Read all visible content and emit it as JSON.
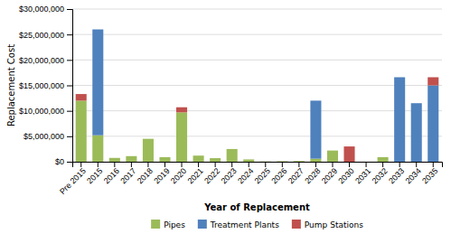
{
  "chart_data": {
    "type": "bar",
    "stacked": true,
    "xlabel": "Year of Replacement",
    "ylabel": "Replacement Cost",
    "categories": [
      "Pre 2015",
      "2015",
      "2016",
      "2017",
      "2018",
      "2019",
      "2020",
      "2021",
      "2022",
      "2023",
      "2024",
      "2025",
      "2026",
      "2027",
      "2028",
      "2029",
      "2030",
      "2031",
      "2032",
      "2033",
      "2034",
      "2035"
    ],
    "series": [
      {
        "name": "Pipes",
        "color": "#9BBB59",
        "values": [
          12000000,
          5200000,
          750000,
          1100000,
          4500000,
          900000,
          9700000,
          1200000,
          700000,
          2500000,
          450000,
          50000,
          100000,
          150000,
          600000,
          2200000,
          0,
          0,
          900000,
          0,
          0,
          0
        ]
      },
      {
        "name": "Treatment Plants",
        "color": "#4F81BD",
        "values": [
          0,
          20800000,
          0,
          0,
          0,
          0,
          0,
          0,
          0,
          0,
          0,
          0,
          0,
          0,
          11400000,
          0,
          0,
          0,
          0,
          16600000,
          11500000,
          15000000
        ]
      },
      {
        "name": "Pump Stations",
        "color": "#C0504D",
        "values": [
          1300000,
          0,
          0,
          0,
          0,
          0,
          1000000,
          0,
          0,
          0,
          0,
          0,
          0,
          0,
          0,
          0,
          3000000,
          0,
          0,
          0,
          0,
          1600000
        ]
      }
    ],
    "ylim": [
      0,
      30000000
    ],
    "yticks": [
      {
        "value": 0,
        "label": "$0"
      },
      {
        "value": 5000000,
        "label": "$5,000,000"
      },
      {
        "value": 10000000,
        "label": "$10,000,000"
      },
      {
        "value": 15000000,
        "label": "$15,000,000"
      },
      {
        "value": 20000000,
        "label": "$20,000,000"
      },
      {
        "value": 25000000,
        "label": "$25,000,000"
      },
      {
        "value": 30000000,
        "label": "$30,000,000"
      }
    ],
    "grid": true,
    "legend": "bottom"
  }
}
